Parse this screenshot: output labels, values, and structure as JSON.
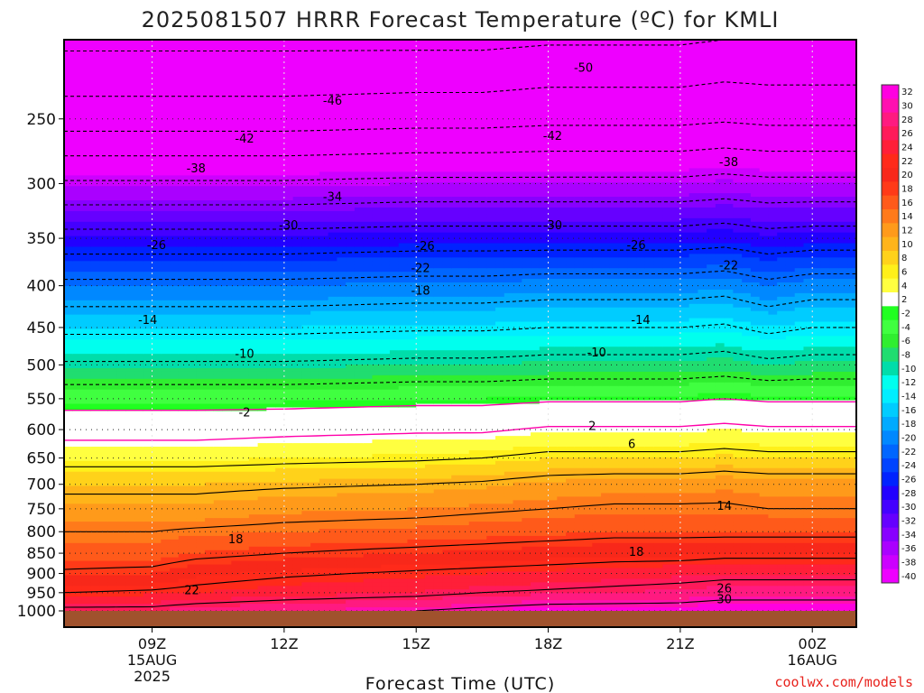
{
  "chart_data": {
    "type": "heatmap",
    "title": "2025081507 HRRR Forecast Temperature (ºC) for KMLI",
    "xlabel": "Forecast Time (UTC)",
    "ylabel": "",
    "y_scale": "log pressure (inverted)",
    "y_range": [
      1000,
      200
    ],
    "y_ticks": [
      250,
      300,
      350,
      400,
      450,
      500,
      550,
      600,
      650,
      700,
      750,
      800,
      850,
      900,
      950,
      1000
    ],
    "x_range_hours": [
      7,
      25
    ],
    "x_ticks": [
      {
        "hour": 9,
        "lines": [
          "09Z",
          "15AUG",
          "2025"
        ]
      },
      {
        "hour": 12,
        "lines": [
          "12Z"
        ]
      },
      {
        "hour": 15,
        "lines": [
          "15Z"
        ]
      },
      {
        "hour": 18,
        "lines": [
          "18Z"
        ]
      },
      {
        "hour": 21,
        "lines": [
          "21Z"
        ]
      },
      {
        "hour": 24,
        "lines": [
          "00Z",
          "16AUG"
        ]
      }
    ],
    "colorbar": {
      "labels": [
        "32",
        "30",
        "28",
        "26",
        "24",
        "22",
        "20",
        "18",
        "16",
        "14",
        "12",
        "10",
        "8",
        "6",
        "4",
        "2",
        "-2",
        "-4",
        "-6",
        "-8",
        "-10",
        "-12",
        "-14",
        "-16",
        "-18",
        "-20",
        "-22",
        "-24",
        "-26",
        "-28",
        "-30",
        "-32",
        "-34",
        "-36",
        "-38",
        "-40"
      ],
      "colors": [
        "#ff00e0",
        "#ff10b0",
        "#ff1a80",
        "#ff1a5a",
        "#ff1f38",
        "#ff2a1a",
        "#f8281a",
        "#ff3a18",
        "#ff5a1a",
        "#ff7a1a",
        "#ff9a1a",
        "#ffb41a",
        "#ffd21a",
        "#fff01a",
        "#ffff40",
        "#ffffff",
        "#20ff20",
        "#40ff40",
        "#30ee30",
        "#20dd70",
        "#00ddaa",
        "#00ffee",
        "#00eeff",
        "#00ccff",
        "#00aaff",
        "#0088ff",
        "#0066ff",
        "#0044ff",
        "#0022ff",
        "#2200ff",
        "#4400ff",
        "#6600ff",
        "#8800ff",
        "#aa00ff",
        "#cc00ff",
        "#ee00ff"
      ]
    },
    "ground_color": "#a0522d",
    "profile_hours": [
      7,
      9,
      10,
      12,
      15,
      16.5,
      18,
      19.5,
      21,
      22,
      23,
      24,
      25
    ],
    "level_pressures": [
      1000,
      950,
      900,
      850,
      800,
      750,
      700,
      650,
      600,
      550,
      500,
      450,
      400,
      350,
      300,
      250,
      200
    ],
    "temperature_profiles": [
      [
        27,
        22.0,
        18.5,
        16.0,
        14.0,
        11.5,
        9.0,
        4.5,
        0.5,
        -3.5,
        -9.5,
        -15.0,
        -21.0,
        -28.5,
        -37.5,
        -48.0,
        -55.0
      ],
      [
        27,
        22.5,
        19.0,
        16.0,
        14.0,
        11.5,
        9.0,
        4.5,
        0.5,
        -3.5,
        -9.5,
        -15.0,
        -21.0,
        -28.5,
        -37.5,
        -48.0,
        -55.0
      ],
      [
        28,
        23.0,
        20.5,
        17.0,
        14.5,
        11.5,
        9.0,
        4.5,
        0.5,
        -3.5,
        -9.5,
        -15.0,
        -21.0,
        -28.5,
        -37.5,
        -48.0,
        -55.0
      ],
      [
        29,
        24.0,
        21.5,
        18.0,
        15.0,
        12.5,
        9.5,
        5.0,
        1.0,
        -3.5,
        -9.5,
        -15.0,
        -21.0,
        -28.5,
        -37.5,
        -48.0,
        -55.0
      ],
      [
        30,
        25.0,
        22.5,
        19.0,
        15.5,
        13.0,
        10.0,
        5.5,
        1.5,
        -3.0,
        -9.0,
        -14.5,
        -20.5,
        -28.0,
        -37.0,
        -47.5,
        -55.0
      ],
      [
        31,
        26.0,
        23.0,
        19.5,
        16.0,
        13.5,
        10.5,
        6.0,
        1.5,
        -3.0,
        -9.0,
        -14.5,
        -20.5,
        -28.0,
        -37.0,
        -47.5,
        -55.0
      ],
      [
        32,
        26.5,
        23.5,
        20.0,
        16.5,
        14.0,
        11.5,
        7.0,
        2.5,
        -2.5,
        -8.5,
        -14.0,
        -20.0,
        -28.0,
        -37.0,
        -47.0,
        -54.5
      ],
      [
        32,
        27.0,
        24.0,
        20.5,
        17.0,
        14.5,
        12.0,
        7.0,
        2.5,
        -2.5,
        -8.5,
        -14.0,
        -20.0,
        -28.0,
        -37.0,
        -47.0,
        -54.5
      ],
      [
        32,
        27.5,
        24.5,
        20.5,
        17.0,
        14.5,
        12.0,
        7.0,
        2.5,
        -2.5,
        -8.5,
        -14.0,
        -20.0,
        -28.0,
        -37.0,
        -47.0,
        -54.5
      ],
      [
        33,
        28.0,
        25.0,
        21.0,
        17.0,
        14.5,
        12.5,
        7.5,
        3.0,
        -2.0,
        -8.0,
        -13.5,
        -19.5,
        -27.5,
        -36.5,
        -46.5,
        -54.0
      ],
      [
        33,
        28.0,
        25.0,
        21.0,
        17.0,
        14.0,
        12.0,
        7.0,
        2.5,
        -2.5,
        -9.0,
        -15.0,
        -21.0,
        -28.5,
        -37.0,
        -47.0,
        -54.0
      ],
      [
        33,
        28.0,
        25.0,
        21.0,
        17.0,
        14.0,
        12.0,
        7.0,
        2.5,
        -2.5,
        -8.5,
        -14.0,
        -20.0,
        -28.0,
        -37.0,
        -47.0,
        -54.0
      ],
      [
        33,
        28.0,
        25.0,
        21.0,
        17.0,
        14.0,
        12.0,
        7.0,
        2.5,
        -2.5,
        -8.5,
        -14.0,
        -20.0,
        -28.0,
        -37.0,
        -47.0,
        -54.0
      ]
    ],
    "contour_labels": [
      {
        "text": "-50",
        "hour": 18.8,
        "p": 216
      },
      {
        "text": "-46",
        "hour": 13.1,
        "p": 237
      },
      {
        "text": "-42",
        "hour": 11.1,
        "p": 264
      },
      {
        "text": "-42",
        "hour": 18.1,
        "p": 262
      },
      {
        "text": "-38",
        "hour": 10.0,
        "p": 287
      },
      {
        "text": "-38",
        "hour": 22.1,
        "p": 282
      },
      {
        "text": "-34",
        "hour": 13.1,
        "p": 311
      },
      {
        "text": "-30",
        "hour": 12.1,
        "p": 337
      },
      {
        "text": "-30",
        "hour": 18.1,
        "p": 337
      },
      {
        "text": "-26",
        "hour": 9.1,
        "p": 356
      },
      {
        "text": "-26",
        "hour": 15.2,
        "p": 357
      },
      {
        "text": "-26",
        "hour": 20.0,
        "p": 356
      },
      {
        "text": "-22",
        "hour": 15.1,
        "p": 380
      },
      {
        "text": "-22",
        "hour": 22.1,
        "p": 377
      },
      {
        "text": "-18",
        "hour": 15.1,
        "p": 405
      },
      {
        "text": "-14",
        "hour": 8.9,
        "p": 440
      },
      {
        "text": "-14",
        "hour": 20.1,
        "p": 440
      },
      {
        "text": "-10",
        "hour": 11.1,
        "p": 484
      },
      {
        "text": "-10",
        "hour": 19.1,
        "p": 482
      },
      {
        "text": "-2",
        "hour": 11.1,
        "p": 571
      },
      {
        "text": "2",
        "hour": 19.0,
        "p": 593
      },
      {
        "text": "6",
        "hour": 19.9,
        "p": 624
      },
      {
        "text": "14",
        "hour": 22.0,
        "p": 743
      },
      {
        "text": "18",
        "hour": 10.9,
        "p": 816
      },
      {
        "text": "18",
        "hour": 20.0,
        "p": 846
      },
      {
        "text": "22",
        "hour": 9.9,
        "p": 942
      },
      {
        "text": "26",
        "hour": 22.0,
        "p": 937
      },
      {
        "text": "30",
        "hour": 22.0,
        "p": 966
      }
    ],
    "grid": true
  },
  "credit": "coolwx.com/models"
}
